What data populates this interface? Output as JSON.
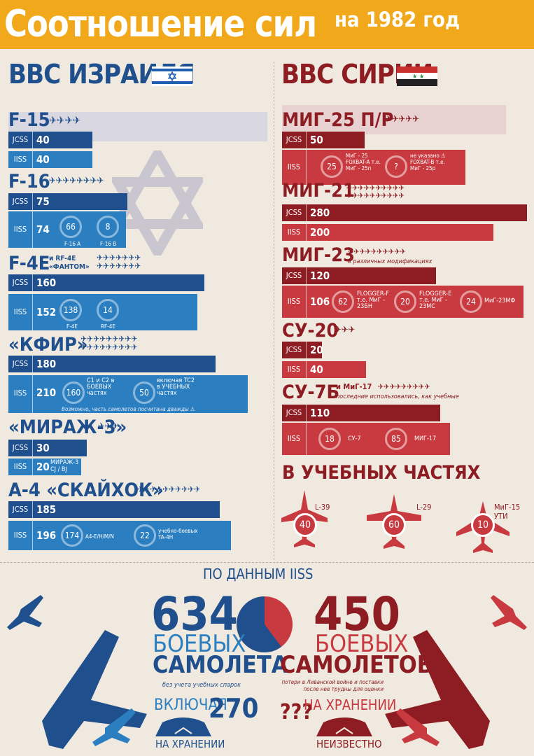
{
  "header": {
    "title": "Соотношение сил",
    "year": "на 1982 год"
  },
  "israel": {
    "title": "ВВС ИЗРАИЛЯ",
    "aircraft": [
      {
        "name": "F-15",
        "jcss": "40",
        "iiss": "40"
      },
      {
        "name": "F-16",
        "jcss": "75",
        "iiss": "74",
        "subs": [
          {
            "v": "66",
            "label": "F-16 A"
          },
          {
            "v": "8",
            "label": "F-16 B"
          }
        ]
      },
      {
        "name": "F-4E",
        "suffix": "и RF-4E «ФАНТОМ»",
        "jcss": "160",
        "iiss": "152",
        "subs": [
          {
            "v": "138",
            "label": "F-4E"
          },
          {
            "v": "14",
            "label": "RF-4E"
          }
        ]
      },
      {
        "name": "«КФИР»",
        "jcss": "180",
        "iiss": "210",
        "subs": [
          {
            "v": "160",
            "label": "C1 и C2 в БОЕВЫХ частях"
          },
          {
            "v": "50",
            "label": "включая TC2 в УЧЕБНЫХ частях"
          }
        ],
        "note": "Возможно, часть самолетов посчитана дважды ⚠"
      },
      {
        "name": "«МИРАЖ-3»",
        "jcss": "30",
        "iiss": "20",
        "sub_text": "МИРАЖ-3",
        "sub_text2": "CJ / BJ"
      },
      {
        "name": "А-4 «СКАЙХОК»",
        "jcss": "185",
        "iiss": "196",
        "subs": [
          {
            "v": "174",
            "label": "A4-E/H/M/N"
          },
          {
            "v": "22",
            "label": "учебно-боевых TA-4H"
          }
        ]
      }
    ]
  },
  "syria": {
    "title": "ВВС СИРИИ",
    "aircraft": [
      {
        "name": "МИГ-25 П/Р",
        "jcss": "50",
        "iiss": "",
        "subs": [
          {
            "v": "25",
            "label": "МиГ - 25 FOXBAT-A т.е. МиГ - 25п"
          },
          {
            "v": "?",
            "label": "не указано ⚠ FOXBAT-B т.е. МиГ - 25р"
          }
        ]
      },
      {
        "name": "МИГ-21",
        "jcss": "280",
        "iiss": "200"
      },
      {
        "name": "МИГ-23",
        "suffix": "в различных модификациях",
        "jcss": "120",
        "iiss": "106",
        "subs": [
          {
            "v": "62",
            "label": "FLOGGER-F т.е. МиГ - 23БН"
          },
          {
            "v": "20",
            "label": "FLOGGER-E т.е. МиГ - 23МС"
          },
          {
            "v": "24",
            "label": "МиГ-23МФ"
          }
        ]
      },
      {
        "name": "СУ-20",
        "jcss": "20",
        "iiss": "40"
      },
      {
        "name": "СУ-7Б",
        "suffix": "и МиГ-17",
        "suffix2": "последние использовались, как учебные",
        "jcss": "110",
        "iiss": "",
        "subs": [
          {
            "v": "18",
            "label": "СУ-7"
          },
          {
            "v": "85",
            "label": "МИГ-17"
          }
        ]
      }
    ],
    "training": {
      "title": "В УЧЕБНЫХ ЧАСТЯХ",
      "items": [
        {
          "v": "40",
          "label": "L-39"
        },
        {
          "v": "60",
          "label": "L-29"
        },
        {
          "v": "10",
          "label": "МиГ-15 УТИ"
        }
      ]
    }
  },
  "summary": {
    "source": "ПО ДАННЫМ IISS",
    "israel_total": "634",
    "israel_word1": "БОЕВЫХ",
    "israel_word2": "САМОЛЕТА",
    "israel_note": "без учета учебных спарок",
    "israel_incl": "ВКЛЮЧАЯ",
    "israel_storage": "270",
    "israel_storage_label": "НА ХРАНЕНИИ",
    "syria_total": "450",
    "syria_word1": "БОЕВЫХ",
    "syria_word2": "САМОЛЕТОВ",
    "syria_note": "потери в Ливанской войне и поставки после нее трудны для оценки",
    "syria_storage": "???",
    "syria_storage_head": "НА ХРАНЕНИИ",
    "syria_storage_label": "НЕИЗВЕСТНО"
  },
  "chart_data": {
    "type": "bar",
    "categories": [
      "F-15",
      "F-16",
      "F-4E",
      "КФИР",
      "МИРАЖ-3",
      "А-4",
      "МИГ-25",
      "МИГ-21",
      "МИГ-23",
      "СУ-20",
      "СУ-7Б"
    ],
    "series": [
      {
        "name": "JCSS",
        "values": [
          40,
          75,
          160,
          180,
          30,
          185,
          50,
          280,
          120,
          20,
          110
        ]
      },
      {
        "name": "IISS",
        "values": [
          40,
          74,
          152,
          210,
          20,
          196,
          null,
          200,
          106,
          40,
          null
        ]
      }
    ],
    "pie": {
      "values": [
        634,
        450
      ]
    },
    "colors": {
      "israel": "#1f4f8c",
      "israel_light": "#2b7fc1",
      "syria": "#8d1d22",
      "syria_light": "#c83a3f",
      "header": "#f1a91b"
    }
  }
}
